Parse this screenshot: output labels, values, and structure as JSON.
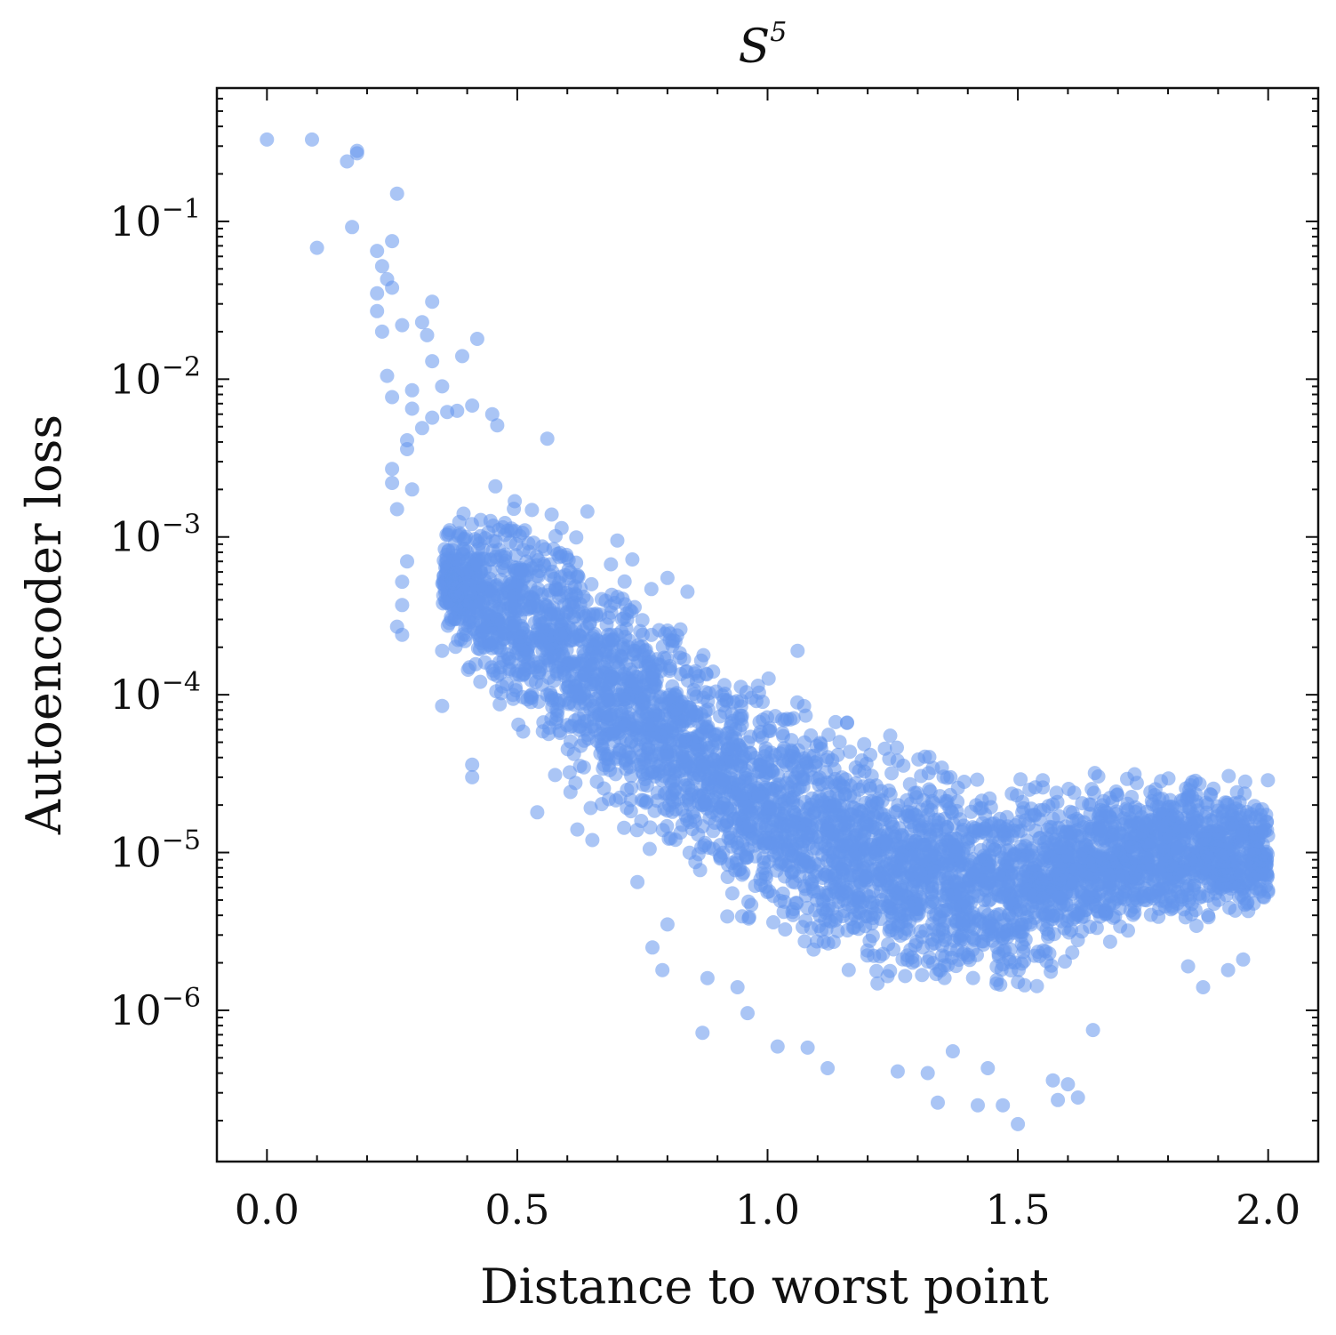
{
  "chart_data": {
    "type": "scatter",
    "title": "S",
    "title_superscript": "5",
    "xlabel": "Distance to worst point",
    "ylabel": "Autoencoder loss",
    "xlim": [
      -0.1,
      2.1
    ],
    "ylim": [
      1.1e-07,
      0.7
    ],
    "yscale": "log",
    "grid": false,
    "legend": "none",
    "x_ticks": [
      0.0,
      0.5,
      1.0,
      1.5,
      2.0
    ],
    "x_tick_labels": [
      "0.0",
      "0.5",
      "1.0",
      "1.5",
      "2.0"
    ],
    "y_ticks": [
      1e-06,
      1e-05,
      0.0001,
      0.001,
      0.01,
      0.1
    ],
    "y_tick_labels": [
      {
        "base": "10",
        "exp": "−6"
      },
      {
        "base": "10",
        "exp": "−5"
      },
      {
        "base": "10",
        "exp": "−4"
      },
      {
        "base": "10",
        "exp": "−3"
      },
      {
        "base": "10",
        "exp": "−2"
      },
      {
        "base": "10",
        "exp": "−1"
      }
    ],
    "point_color": "#6495ED",
    "point_alpha": 0.55,
    "series": [
      {
        "highlighted_points": [
          {
            "x": 0.0,
            "y": 0.33
          },
          {
            "x": 0.09,
            "y": 0.33
          },
          {
            "x": 0.16,
            "y": 0.24
          },
          {
            "x": 0.18,
            "y": 0.27
          },
          {
            "x": 0.18,
            "y": 0.28
          },
          {
            "x": 0.26,
            "y": 0.15
          },
          {
            "x": 0.1,
            "y": 0.068
          },
          {
            "x": 0.17,
            "y": 0.092
          },
          {
            "x": 0.25,
            "y": 0.075
          },
          {
            "x": 0.22,
            "y": 0.065
          },
          {
            "x": 0.23,
            "y": 0.052
          },
          {
            "x": 0.24,
            "y": 0.043
          },
          {
            "x": 0.25,
            "y": 0.038
          },
          {
            "x": 0.22,
            "y": 0.035
          },
          {
            "x": 0.22,
            "y": 0.027
          },
          {
            "x": 0.33,
            "y": 0.031
          },
          {
            "x": 0.31,
            "y": 0.023
          },
          {
            "x": 0.27,
            "y": 0.022
          },
          {
            "x": 0.23,
            "y": 0.02
          },
          {
            "x": 0.32,
            "y": 0.019
          },
          {
            "x": 0.42,
            "y": 0.018
          },
          {
            "x": 0.39,
            "y": 0.014
          },
          {
            "x": 0.33,
            "y": 0.013
          },
          {
            "x": 0.24,
            "y": 0.0105
          },
          {
            "x": 0.29,
            "y": 0.0085
          },
          {
            "x": 0.35,
            "y": 0.009
          },
          {
            "x": 0.25,
            "y": 0.0077
          },
          {
            "x": 0.29,
            "y": 0.0065
          },
          {
            "x": 0.38,
            "y": 0.0063
          },
          {
            "x": 0.36,
            "y": 0.0062
          },
          {
            "x": 0.45,
            "y": 0.006
          },
          {
            "x": 0.41,
            "y": 0.0068
          },
          {
            "x": 0.33,
            "y": 0.0057
          },
          {
            "x": 0.46,
            "y": 0.0051
          },
          {
            "x": 0.31,
            "y": 0.0049
          },
          {
            "x": 0.28,
            "y": 0.0041
          },
          {
            "x": 0.56,
            "y": 0.0042
          },
          {
            "x": 0.28,
            "y": 0.0036
          },
          {
            "x": 0.25,
            "y": 0.0027
          },
          {
            "x": 0.25,
            "y": 0.0022
          },
          {
            "x": 0.29,
            "y": 0.002
          },
          {
            "x": 0.26,
            "y": 0.0015
          },
          {
            "x": 0.64,
            "y": 0.00145
          },
          {
            "x": 0.7,
            "y": 0.00095
          },
          {
            "x": 0.73,
            "y": 0.00072
          },
          {
            "x": 0.28,
            "y": 0.0007
          },
          {
            "x": 0.27,
            "y": 0.00052
          },
          {
            "x": 0.8,
            "y": 0.00055
          },
          {
            "x": 0.84,
            "y": 0.00045
          },
          {
            "x": 0.27,
            "y": 0.00037
          },
          {
            "x": 0.26,
            "y": 0.00027
          },
          {
            "x": 0.27,
            "y": 0.00024
          },
          {
            "x": 0.35,
            "y": 0.00019
          },
          {
            "x": 1.06,
            "y": 0.00019
          },
          {
            "x": 0.35,
            "y": 8.5e-05
          },
          {
            "x": 0.41,
            "y": 3.6e-05
          },
          {
            "x": 0.41,
            "y": 3e-05
          },
          {
            "x": 0.54,
            "y": 1.8e-05
          },
          {
            "x": 0.62,
            "y": 1.4e-05
          },
          {
            "x": 0.65,
            "y": 1.2e-05
          },
          {
            "x": 0.74,
            "y": 6.5e-06
          },
          {
            "x": 0.8,
            "y": 3.5e-06
          },
          {
            "x": 0.77,
            "y": 2.5e-06
          },
          {
            "x": 0.79,
            "y": 1.8e-06
          },
          {
            "x": 0.88,
            "y": 1.6e-06
          },
          {
            "x": 0.94,
            "y": 1.4e-06
          },
          {
            "x": 0.96,
            "y": 9.6e-07
          },
          {
            "x": 0.87,
            "y": 7.2e-07
          },
          {
            "x": 1.02,
            "y": 5.9e-07
          },
          {
            "x": 1.08,
            "y": 5.8e-07
          },
          {
            "x": 1.12,
            "y": 4.3e-07
          },
          {
            "x": 1.26,
            "y": 4.1e-07
          },
          {
            "x": 1.32,
            "y": 4e-07
          },
          {
            "x": 1.34,
            "y": 2.6e-07
          },
          {
            "x": 1.42,
            "y": 2.5e-07
          },
          {
            "x": 1.47,
            "y": 2.5e-07
          },
          {
            "x": 1.5,
            "y": 1.9e-07
          },
          {
            "x": 1.58,
            "y": 2.7e-07
          },
          {
            "x": 1.62,
            "y": 2.8e-07
          },
          {
            "x": 1.57,
            "y": 3.6e-07
          },
          {
            "x": 1.6,
            "y": 3.4e-07
          },
          {
            "x": 1.72,
            "y": 3.2e-06
          },
          {
            "x": 1.84,
            "y": 1.9e-06
          },
          {
            "x": 1.87,
            "y": 1.4e-06
          },
          {
            "x": 1.92,
            "y": 1.8e-06
          },
          {
            "x": 1.95,
            "y": 2.1e-06
          },
          {
            "x": 1.65,
            "y": 7.5e-07
          },
          {
            "x": 1.37,
            "y": 5.5e-07
          },
          {
            "x": 1.44,
            "y": 4.3e-07
          }
        ],
        "dense_cloud_envelope": [
          {
            "x": 0.35,
            "y_low": 0.00025,
            "y_high": 0.0012
          },
          {
            "x": 0.45,
            "y_low": 6e-05,
            "y_high": 0.0025
          },
          {
            "x": 0.55,
            "y_low": 3e-05,
            "y_high": 0.002
          },
          {
            "x": 0.65,
            "y_low": 1.6e-05,
            "y_high": 0.0012
          },
          {
            "x": 0.75,
            "y_low": 9e-06,
            "y_high": 0.0006
          },
          {
            "x": 0.85,
            "y_low": 5e-06,
            "y_high": 0.00032
          },
          {
            "x": 0.95,
            "y_low": 3.2e-06,
            "y_high": 0.00018
          },
          {
            "x": 1.05,
            "y_low": 2.2e-06,
            "y_high": 0.00012
          },
          {
            "x": 1.15,
            "y_low": 1.6e-06,
            "y_high": 8.5e-05
          },
          {
            "x": 1.25,
            "y_low": 1.2e-06,
            "y_high": 6.2e-05
          },
          {
            "x": 1.35,
            "y_low": 1.1e-06,
            "y_high": 4.8e-05
          },
          {
            "x": 1.45,
            "y_low": 1e-06,
            "y_high": 4e-05
          },
          {
            "x": 1.55,
            "y_low": 1.2e-06,
            "y_high": 3.6e-05
          },
          {
            "x": 1.65,
            "y_low": 2e-06,
            "y_high": 3.5e-05
          },
          {
            "x": 1.75,
            "y_low": 3e-06,
            "y_high": 3.4e-05
          },
          {
            "x": 1.85,
            "y_low": 3e-06,
            "y_high": 3.5e-05
          },
          {
            "x": 1.95,
            "y_low": 2.8e-06,
            "y_high": 3.7e-05
          },
          {
            "x": 2.0,
            "y_low": 3.5e-06,
            "y_high": 3.2e-05
          }
        ]
      }
    ]
  }
}
